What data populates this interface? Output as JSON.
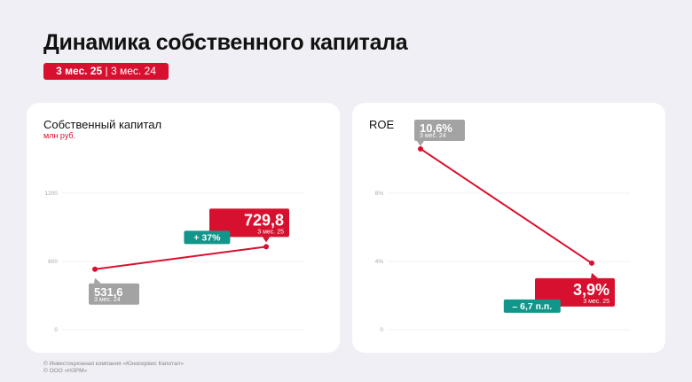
{
  "title": "Динамика собственного капитала",
  "period": {
    "current": "3 мес. 25",
    "separator": "|",
    "previous": "3 мес. 24"
  },
  "colors": {
    "accent": "#d8102f",
    "teal": "#12958a",
    "gray": "#a3a3a3"
  },
  "footer": [
    "© Инвестиционная компания «Юнисервис Капитал»",
    "© ООО «НЗРМ»"
  ],
  "chart_data": [
    {
      "type": "line",
      "title": "Собственный капитал",
      "subtitle": "млн руб.",
      "categories": [
        "3 мес. 24",
        "3 мес. 25"
      ],
      "values": [
        531.6,
        729.8
      ],
      "labels": [
        "531,6",
        "729,8"
      ],
      "yticks": [
        0,
        600,
        1200
      ],
      "ytick_labels": [
        "0",
        "600",
        "1200"
      ],
      "ylim": [
        0,
        1200
      ],
      "change": "+ 37%"
    },
    {
      "type": "line",
      "title": "ROE",
      "subtitle": "",
      "categories": [
        "3 мес. 24",
        "3 мес. 25"
      ],
      "values": [
        10.6,
        3.9
      ],
      "labels": [
        "10,6%",
        "3,9%"
      ],
      "yticks": [
        0,
        4,
        8
      ],
      "ytick_labels": [
        "0",
        "4%",
        "8%"
      ],
      "ylim": [
        0,
        8
      ],
      "change": "– 6,7 п.п."
    }
  ]
}
